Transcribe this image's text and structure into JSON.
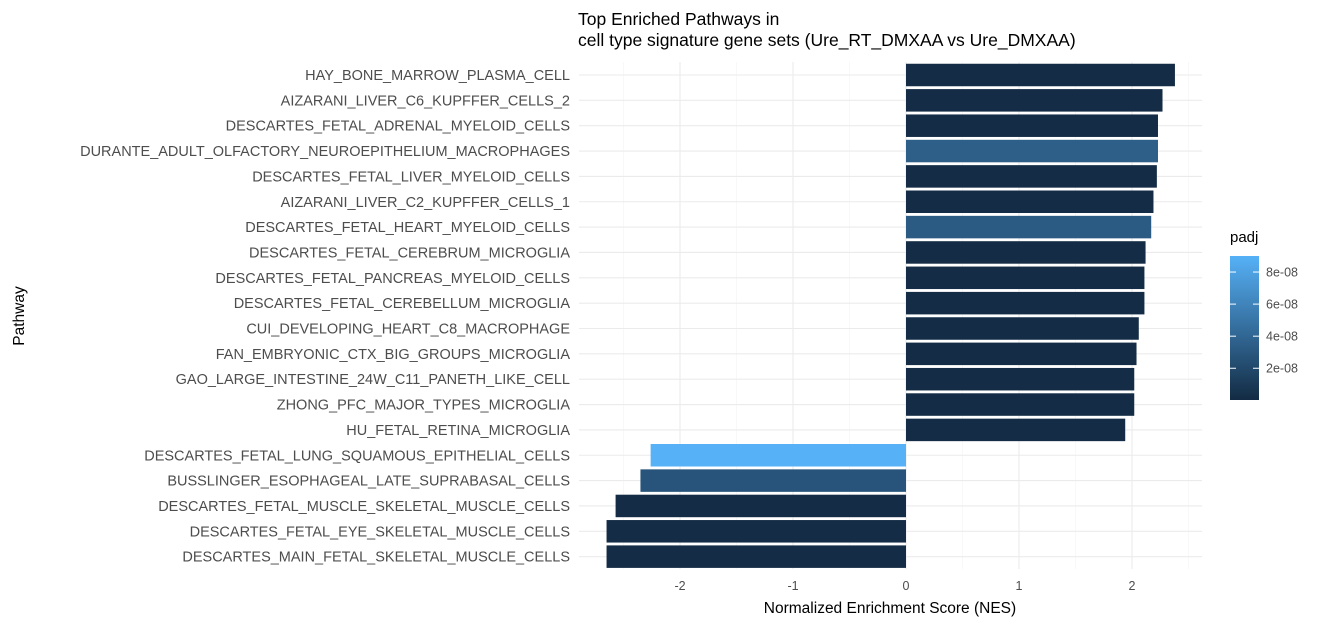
{
  "chart_data": {
    "type": "bar",
    "orientation": "horizontal",
    "title_lines": [
      "Top Enriched Pathways in",
      "cell type signature gene sets (Ure_RT_DMXAA vs Ure_DMXAA)"
    ],
    "xlabel": "Normalized Enrichment Score (NES)",
    "ylabel": "Pathway",
    "xlim": [
      -2.75,
      2.55
    ],
    "x_ticks": [
      -2,
      -1,
      0,
      1,
      2
    ],
    "x_tick_labels": [
      "-2",
      "-1",
      "0",
      "1",
      "2"
    ],
    "grid": true,
    "legend": {
      "title": "padj",
      "placement": "right",
      "type": "colorbar",
      "color_low": "#132B43",
      "color_high": "#56B1F7",
      "range": [
        2e-10,
        9e-08
      ],
      "ticks": [
        2e-08,
        4e-08,
        6e-08,
        8e-08
      ],
      "tick_labels": [
        "2e-08",
        "4e-08",
        "6e-08",
        "8e-08"
      ]
    },
    "categories": [
      "HAY_BONE_MARROW_PLASMA_CELL",
      "AIZARANI_LIVER_C6_KUPFFER_CELLS_2",
      "DESCARTES_FETAL_ADRENAL_MYELOID_CELLS",
      "DURANTE_ADULT_OLFACTORY_NEUROEPITHELIUM_MACROPHAGES",
      "DESCARTES_FETAL_LIVER_MYELOID_CELLS",
      "AIZARANI_LIVER_C2_KUPFFER_CELLS_1",
      "DESCARTES_FETAL_HEART_MYELOID_CELLS",
      "DESCARTES_FETAL_CEREBRUM_MICROGLIA",
      "DESCARTES_FETAL_PANCREAS_MYELOID_CELLS",
      "DESCARTES_FETAL_CEREBELLUM_MICROGLIA",
      "CUI_DEVELOPING_HEART_C8_MACROPHAGE",
      "FAN_EMBRYONIC_CTX_BIG_GROUPS_MICROGLIA",
      "GAO_LARGE_INTESTINE_24W_C11_PANETH_LIKE_CELL",
      "ZHONG_PFC_MAJOR_TYPES_MICROGLIA",
      "HU_FETAL_RETINA_MICROGLIA",
      "DESCARTES_FETAL_LUNG_SQUAMOUS_EPITHELIAL_CELLS",
      "BUSSLINGER_ESOPHAGEAL_LATE_SUPRABASAL_CELLS",
      "DESCARTES_FETAL_MUSCLE_SKELETAL_MUSCLE_CELLS",
      "DESCARTES_FETAL_EYE_SKELETAL_MUSCLE_CELLS",
      "DESCARTES_MAIN_FETAL_SKELETAL_MUSCLE_CELLS"
    ],
    "values": [
      2.38,
      2.27,
      2.23,
      2.23,
      2.22,
      2.19,
      2.17,
      2.12,
      2.11,
      2.11,
      2.06,
      2.04,
      2.02,
      2.02,
      1.94,
      -2.26,
      -2.35,
      -2.57,
      -2.65,
      -2.65
    ],
    "padj": [
      1e-09,
      1e-09,
      1e-09,
      3.5e-08,
      1e-09,
      1e-09,
      3.2e-08,
      1e-09,
      1e-09,
      1e-09,
      1e-09,
      1e-09,
      1e-09,
      1e-09,
      1e-09,
      9e-08,
      2.8e-08,
      1e-09,
      1e-09,
      1e-09
    ]
  }
}
